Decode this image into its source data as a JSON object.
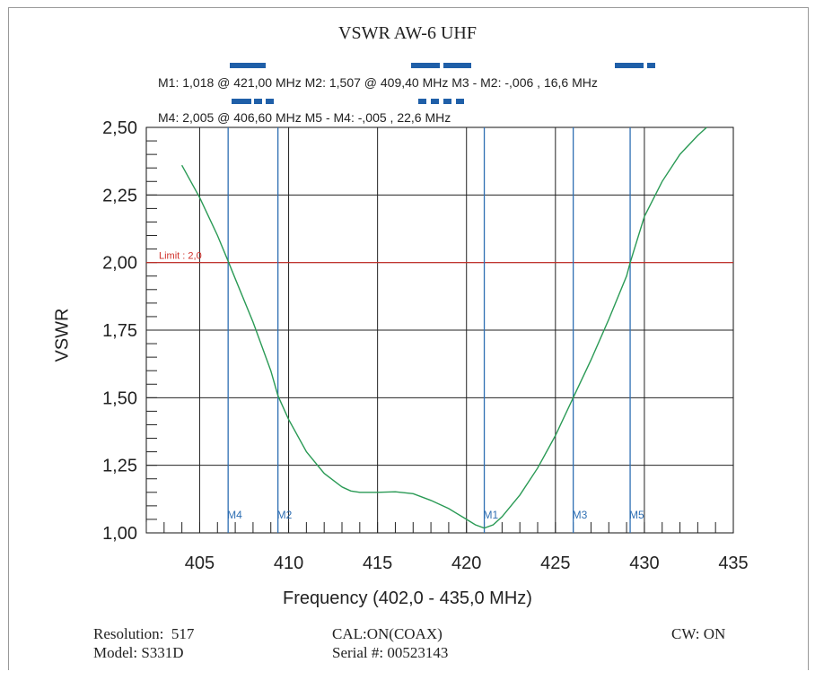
{
  "chart_data": {
    "type": "line",
    "title": "VSWR AW-6 UHF",
    "xlabel": "Frequency (402,0 - 435,0 MHz)",
    "ylabel": "VSWR",
    "xlim": [
      402.0,
      435.0
    ],
    "ylim": [
      1.0,
      2.5
    ],
    "x_ticks": [
      {
        "value": 405,
        "label": "405"
      },
      {
        "value": 410,
        "label": "410"
      },
      {
        "value": 415,
        "label": "415"
      },
      {
        "value": 420,
        "label": "420"
      },
      {
        "value": 425,
        "label": "425"
      },
      {
        "value": 430,
        "label": "430"
      },
      {
        "value": 435,
        "label": "435"
      }
    ],
    "y_ticks": [
      {
        "value": 1.0,
        "label": "1,00"
      },
      {
        "value": 1.25,
        "label": "1,25"
      },
      {
        "value": 1.5,
        "label": "1,50"
      },
      {
        "value": 1.75,
        "label": "1,75"
      },
      {
        "value": 2.0,
        "label": "2,00"
      },
      {
        "value": 2.25,
        "label": "2,25"
      },
      {
        "value": 2.5,
        "label": "2,50"
      }
    ],
    "grid": true,
    "series": [
      {
        "color": "#2a9a55",
        "x": [
          404.0,
          405.0,
          406.0,
          406.6,
          407.0,
          408.0,
          409.0,
          409.4,
          410.0,
          411.0,
          412.0,
          413.0,
          413.5,
          414.0,
          415.0,
          416.0,
          417.0,
          418.0,
          419.0,
          420.0,
          420.5,
          421.0,
          421.5,
          422.0,
          423.0,
          424.0,
          425.0,
          426.0,
          427.0,
          428.0,
          429.0,
          429.2,
          430.0,
          431.0,
          432.0,
          433.0,
          433.5
        ],
        "y": [
          2.36,
          2.24,
          2.1,
          2.005,
          1.94,
          1.78,
          1.6,
          1.507,
          1.42,
          1.3,
          1.22,
          1.17,
          1.155,
          1.15,
          1.15,
          1.152,
          1.145,
          1.12,
          1.09,
          1.05,
          1.03,
          1.018,
          1.03,
          1.06,
          1.14,
          1.24,
          1.36,
          1.5,
          1.64,
          1.79,
          1.95,
          2.0,
          2.17,
          2.3,
          2.4,
          2.47,
          2.5
        ]
      }
    ],
    "limit": {
      "value": 2.0,
      "label": "Limit : 2,0",
      "color": "#d0302a"
    },
    "markers": [
      {
        "name": "M4",
        "x": 406.6
      },
      {
        "name": "M2",
        "x": 409.4
      },
      {
        "name": "M1",
        "x": 421.0
      },
      {
        "name": "M3",
        "x": 426.0
      },
      {
        "name": "M5",
        "x": 429.2
      }
    ],
    "marker_color": "#2f6fb3"
  },
  "marker_readouts": {
    "row1": "M1: 1,018  @ 421,00 MHz  M2: 1,507  @ 409,40 MHz  M3 - M2: -,006  , 16,6 MHz",
    "row2": "M4: 2,005  @ 406,60 MHz  M5 - M4: -,005  , 22,6 MHz"
  },
  "footer": {
    "resolution": "Resolution:  517",
    "model": "Model: S331D",
    "cal": "CAL:ON(COAX)",
    "serial": "Serial #: 00523143",
    "cw": "CW: ON"
  }
}
